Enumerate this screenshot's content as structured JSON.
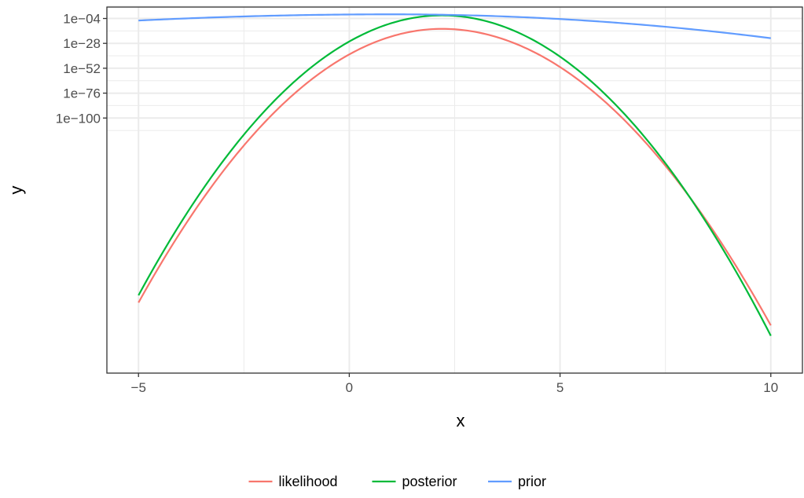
{
  "chart_data": {
    "type": "line",
    "title": "",
    "xlabel": "x",
    "ylabel": "y",
    "y_scale": "log10",
    "xlim": [
      -5.75,
      10.75
    ],
    "ylim_log10": [
      -346,
      7
    ],
    "x_ticks": [
      {
        "value": -5,
        "label": "−5"
      },
      {
        "value": 0,
        "label": "0"
      },
      {
        "value": 5,
        "label": "5"
      },
      {
        "value": 10,
        "label": "10"
      }
    ],
    "y_ticks": [
      {
        "log10": -4,
        "label": "1e−04"
      },
      {
        "log10": -28,
        "label": "1e−28"
      },
      {
        "log10": -52,
        "label": "1e−52"
      },
      {
        "log10": -76,
        "label": "1e−76"
      },
      {
        "log10": -100,
        "label": "1e−100"
      }
    ],
    "grid": true,
    "legend_position": "bottom",
    "series": [
      {
        "name": "likelihood",
        "color": "#F8766D",
        "curve": "quadratic_log10",
        "peak_x": 2.2,
        "peak_log10": -14,
        "x_start": -5,
        "x_end": 10,
        "log10_at_start": -278,
        "log10_at_end": -300
      },
      {
        "name": "posterior",
        "color": "#00BA38",
        "curve": "quadratic_log10",
        "peak_x": 2.2,
        "peak_log10": -1,
        "x_start": -5,
        "x_end": 10,
        "log10_at_start": -271,
        "log10_at_end": -310
      },
      {
        "name": "prior",
        "color": "#619CFF",
        "curve": "quadratic_log10",
        "peak_x": 1.0,
        "peak_log10": 0,
        "x_start": -5,
        "x_end": 10,
        "log10_at_start": -6,
        "log10_at_end": -23
      }
    ]
  }
}
